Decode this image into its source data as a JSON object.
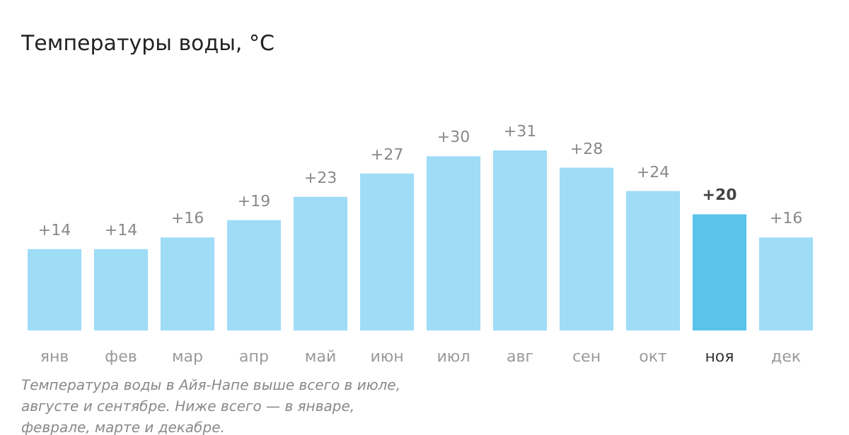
{
  "chart_data": {
    "type": "bar",
    "title": "Температуры воды, °C",
    "categories": [
      "янв",
      "фев",
      "мар",
      "апр",
      "май",
      "июн",
      "июл",
      "авг",
      "сен",
      "окт",
      "ноя",
      "дек"
    ],
    "values": [
      14,
      14,
      16,
      19,
      23,
      27,
      30,
      31,
      28,
      24,
      20,
      16
    ],
    "value_labels": [
      "+14",
      "+14",
      "+16",
      "+19",
      "+23",
      "+27",
      "+30",
      "+31",
      "+28",
      "+24",
      "+20",
      "+16"
    ],
    "colors": [
      "#9fdcf6",
      "#9fdcf6",
      "#9fdcf6",
      "#9fdcf6",
      "#9fdcf6",
      "#9fdcf6",
      "#9fdcf6",
      "#9fdcf6",
      "#9fdcf6",
      "#9fdcf6",
      "#5bc2ec",
      "#9fdcf6"
    ],
    "grid": false,
    "annotations": [
      "Температура воды в Айя-Напе выше всего в июле, августе и сентябре. Ниже всего — в январе, феврале, марте и декабре."
    ]
  }
}
